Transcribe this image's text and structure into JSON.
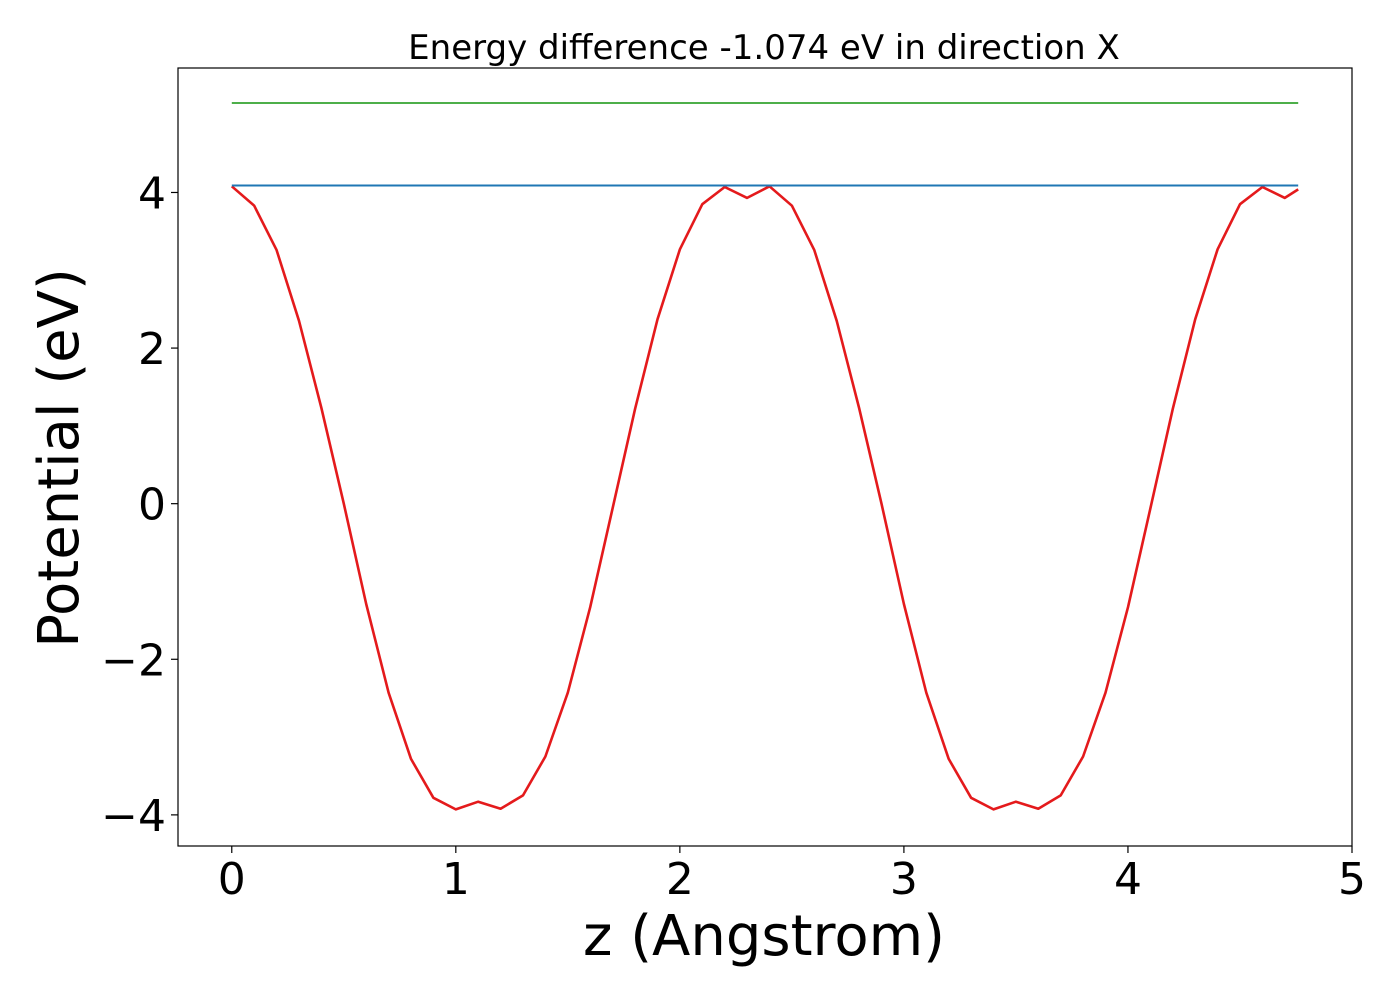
{
  "chart_data": {
    "type": "line",
    "title": "Energy difference -1.074 eV in direction X",
    "xlabel": "z (Angstrom)",
    "ylabel": "Potential (eV)",
    "xlim": [
      -0.24,
      5.0
    ],
    "ylim": [
      -4.4,
      5.6
    ],
    "xticks": [
      0,
      1,
      2,
      3,
      4,
      5
    ],
    "xtick_labels": [
      "0",
      "1",
      "2",
      "3",
      "4",
      "5"
    ],
    "yticks": [
      -4,
      -2,
      0,
      2,
      4
    ],
    "ytick_labels": [
      "−4",
      "−2",
      "0",
      "2",
      "4"
    ],
    "grid": false,
    "series": [
      {
        "color": "#e41a1c",
        "style": "solid",
        "x": [
          0,
          0.1,
          0.2,
          0.3,
          0.4,
          0.5,
          0.6,
          0.7,
          0.8,
          0.9,
          1.0,
          1.1,
          1.2,
          1.3,
          1.4,
          1.5,
          1.6,
          1.7,
          1.8,
          1.9,
          2.0,
          2.1,
          2.2,
          2.3,
          2.4,
          2.5,
          2.6,
          2.7,
          2.8,
          2.9,
          3.0,
          3.1,
          3.2,
          3.3,
          3.4,
          3.5,
          3.6,
          3.7,
          3.8,
          3.9,
          4.0,
          4.1,
          4.2,
          4.3,
          4.4,
          4.5,
          4.6,
          4.7,
          4.76
        ],
        "y": [
          4.08,
          3.83,
          3.26,
          2.35,
          1.23,
          0.0,
          -1.29,
          -2.43,
          -3.28,
          -3.78,
          -3.93,
          -3.83,
          -3.92,
          -3.75,
          -3.25,
          -2.43,
          -1.33,
          -0.06,
          1.22,
          2.37,
          3.27,
          3.85,
          4.07,
          3.93,
          4.08,
          3.83,
          3.26,
          2.35,
          1.23,
          0.0,
          -1.29,
          -2.43,
          -3.28,
          -3.78,
          -3.93,
          -3.83,
          -3.92,
          -3.75,
          -3.25,
          -2.43,
          -1.33,
          -0.06,
          1.22,
          2.37,
          3.27,
          3.85,
          4.07,
          3.93,
          4.04
        ]
      },
      {
        "color": "#1f77b4",
        "style": "solid",
        "x": [
          0,
          4.76
        ],
        "y": [
          4.09,
          4.09
        ]
      },
      {
        "color": "#4daf4a",
        "style": "solid",
        "x": [
          0,
          4.76
        ],
        "y": [
          5.15,
          5.15
        ]
      }
    ]
  }
}
